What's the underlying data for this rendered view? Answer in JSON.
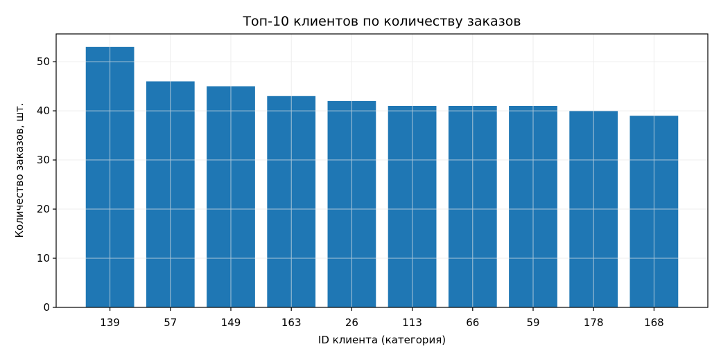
{
  "chart_data": {
    "type": "bar",
    "title": "Топ-10 клиентов по количеству заказов",
    "xlabel": "ID клиента (категория)",
    "ylabel": "Количество заказов, шт.",
    "categories": [
      "139",
      "57",
      "149",
      "163",
      "26",
      "113",
      "66",
      "59",
      "178",
      "168"
    ],
    "values": [
      53,
      46,
      45,
      43,
      42,
      41,
      41,
      41,
      40,
      39
    ],
    "ylim": [
      0,
      55.65
    ],
    "yticks": [
      0,
      10,
      20,
      30,
      40,
      50
    ],
    "grid": true,
    "colors": {
      "bar": "#1f77b4",
      "grid": "#e6e6e6",
      "axis": "#000000"
    }
  }
}
